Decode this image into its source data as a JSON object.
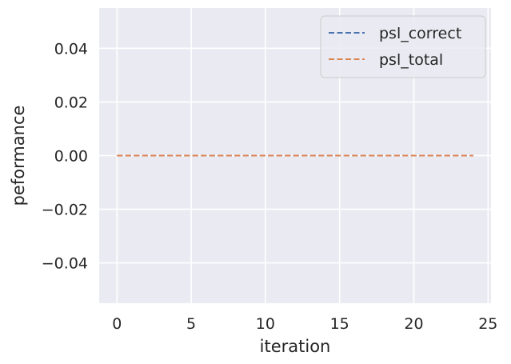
{
  "chart_data": {
    "type": "line",
    "xlabel": "iteration",
    "ylabel": "peformance",
    "xlim": [
      -1.2,
      25.2
    ],
    "ylim": [
      -0.055,
      0.055
    ],
    "xticks": [
      0,
      5,
      10,
      15,
      20,
      25
    ],
    "xtick_labels": [
      "0",
      "5",
      "10",
      "15",
      "20",
      "25"
    ],
    "yticks": [
      0.04,
      0.02,
      0.0,
      -0.02,
      -0.04
    ],
    "ytick_labels": [
      "0.04",
      "0.02",
      "0.00",
      "−0.02",
      "−0.04"
    ],
    "grid": true,
    "legend_position": "top-right",
    "x": [
      0,
      1,
      2,
      3,
      4,
      5,
      6,
      7,
      8,
      9,
      10,
      11,
      12,
      13,
      14,
      15,
      16,
      17,
      18,
      19,
      20,
      21,
      22,
      23,
      24
    ],
    "series": [
      {
        "name": "psl_correct",
        "color": "#4c72b0",
        "line_style": "dashed",
        "values": [
          0,
          0,
          0,
          0,
          0,
          0,
          0,
          0,
          0,
          0,
          0,
          0,
          0,
          0,
          0,
          0,
          0,
          0,
          0,
          0,
          0,
          0,
          0,
          0,
          0
        ]
      },
      {
        "name": "psl_total",
        "color": "#dd8452",
        "line_style": "dashed",
        "values": [
          0,
          0,
          0,
          0,
          0,
          0,
          0,
          0,
          0,
          0,
          0,
          0,
          0,
          0,
          0,
          0,
          0,
          0,
          0,
          0,
          0,
          0,
          0,
          0,
          0
        ]
      }
    ]
  },
  "style": {
    "plot_background": "#eaeaf2",
    "grid_color": "#ffffff"
  }
}
